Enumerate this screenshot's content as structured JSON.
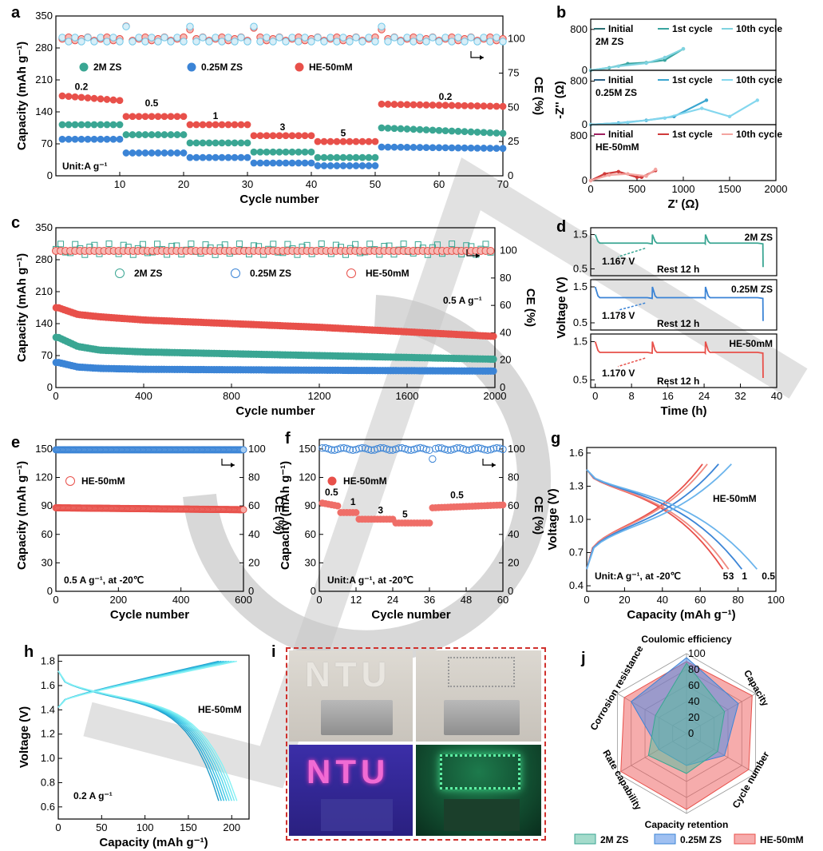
{
  "colors": {
    "zs2": "#3aa693",
    "zs025": "#3b84d6",
    "he": "#e8504a",
    "zs2_light": "#6cc3b2",
    "zs025_light": "#71c7e8",
    "he_light": "#f29b95",
    "watermark": "#c8c8c8",
    "photo_border": "#d0312d"
  },
  "panel_labels": [
    "a",
    "b",
    "c",
    "d",
    "e",
    "f",
    "g",
    "h",
    "i",
    "j"
  ],
  "chart_data": [
    {
      "id": "a",
      "type": "scatter",
      "xlabel": "Cycle number",
      "ylabel": "Capacity (mAh g⁻¹)",
      "y2label": "CE (%)",
      "xlim": [
        0,
        70
      ],
      "ylim": [
        0,
        350
      ],
      "y2lim": [
        0,
        116.7
      ],
      "xticks": [
        "10",
        "20",
        "30",
        "40",
        "50",
        "60",
        "70"
      ],
      "yticks": [
        "0",
        "70",
        "140",
        "210",
        "280",
        "350"
      ],
      "y2ticks": [
        "0",
        "25",
        "50",
        "75",
        "100"
      ],
      "legend": [
        "2M ZS",
        "0.25M ZS",
        "HE-50mM"
      ],
      "unit_note": "Unit:A g⁻¹",
      "rate_labels": [
        {
          "text": "0.2",
          "x": 4,
          "y": 188
        },
        {
          "text": "0.5",
          "x": 15,
          "y": 152
        },
        {
          "text": "1",
          "x": 25,
          "y": 124
        },
        {
          "text": "3",
          "x": 35.5,
          "y": 100
        },
        {
          "text": "5",
          "x": 45,
          "y": 87
        },
        {
          "text": "0.2",
          "x": 61,
          "y": 166
        }
      ],
      "series": [
        {
          "name": "2M ZS",
          "segments": [
            [
              1,
              10,
              112
            ],
            [
              11,
              20,
              90
            ],
            [
              21,
              30,
              72
            ],
            [
              31,
              40,
              52
            ],
            [
              41,
              50,
              40
            ],
            [
              51,
              70,
              105,
              93
            ]
          ]
        },
        {
          "name": "0.25M ZS",
          "segments": [
            [
              1,
              10,
              80
            ],
            [
              11,
              20,
              50
            ],
            [
              21,
              30,
              40
            ],
            [
              31,
              40,
              28
            ],
            [
              41,
              50,
              22
            ],
            [
              51,
              70,
              63,
              60
            ]
          ]
        },
        {
          "name": "HE-50mM",
          "segments": [
            [
              1,
              10,
              175,
              165
            ],
            [
              11,
              20,
              130
            ],
            [
              21,
              30,
              112
            ],
            [
              31,
              40,
              88
            ],
            [
              41,
              50,
              75
            ],
            [
              51,
              70,
              157,
              152
            ]
          ]
        }
      ],
      "ce_level": 100
    },
    {
      "id": "b",
      "type": "line",
      "xlabel": "Z' (Ω)",
      "ylabel": "-Z'' (Ω)",
      "xlim": [
        0,
        2000
      ],
      "ylim": [
        0,
        1000
      ],
      "xticks": [
        "0",
        "500",
        "1000",
        "1500",
        "2000"
      ],
      "yticks": [
        "0",
        "800"
      ],
      "subpanels": [
        {
          "name": "2M ZS",
          "legend": [
            "Initial",
            "1st cycle",
            "10th cycle"
          ],
          "curves": [
            [
              [
                0,
                0
              ],
              [
                200,
                50
              ],
              [
                400,
                130
              ],
              [
                600,
                150
              ],
              [
                800,
                200
              ],
              [
                1000,
                420
              ]
            ],
            [
              [
                0,
                0
              ],
              [
                300,
                80
              ],
              [
                600,
                140
              ],
              [
                800,
                250
              ],
              [
                1000,
                420
              ]
            ]
          ]
        },
        {
          "name": "0.25M ZS",
          "legend": [
            "Initial",
            "1st cycle",
            "10th cycle"
          ],
          "curves": [
            [
              [
                0,
                0
              ],
              [
                300,
                30
              ],
              [
                600,
                80
              ],
              [
                900,
                150
              ],
              [
                1250,
                450
              ]
            ],
            [
              [
                0,
                0
              ],
              [
                400,
                40
              ],
              [
                800,
                120
              ],
              [
                1200,
                300
              ],
              [
                1500,
                150
              ],
              [
                1800,
                450
              ]
            ]
          ]
        },
        {
          "name": "HE-50mM",
          "legend": [
            "Initial",
            "1st cycle",
            "10th cycle"
          ],
          "curves": [
            [
              [
                0,
                0
              ],
              [
                150,
                120
              ],
              [
                300,
                160
              ],
              [
                500,
                60
              ],
              [
                550,
                60
              ],
              [
                700,
                180
              ]
            ],
            [
              [
                0,
                0
              ],
              [
                200,
                100
              ],
              [
                400,
                120
              ],
              [
                600,
                80
              ],
              [
                700,
                200
              ]
            ]
          ]
        }
      ]
    },
    {
      "id": "c",
      "type": "scatter",
      "xlabel": "Cycle number",
      "ylabel": "Capacity (mAh g⁻¹)",
      "y2label": "CE (%)",
      "xlim": [
        0,
        2000
      ],
      "ylim": [
        0,
        350
      ],
      "y2lim": [
        0,
        116.7
      ],
      "xticks": [
        "0",
        "400",
        "800",
        "1200",
        "1600",
        "2000"
      ],
      "yticks": [
        "0",
        "70",
        "140",
        "210",
        "280",
        "350"
      ],
      "y2ticks": [
        "0",
        "20",
        "40",
        "60",
        "80",
        "100"
      ],
      "legend": [
        "2M ZS",
        "0.25M ZS",
        "HE-50mM"
      ],
      "rate_note": "0.5 A g⁻¹",
      "series": [
        {
          "name": "HE-50mM",
          "x": [
            10,
            100,
            200,
            400,
            800,
            1200,
            1600,
            2000
          ],
          "y": [
            175,
            160,
            155,
            148,
            140,
            132,
            122,
            112
          ]
        },
        {
          "name": "2M ZS",
          "x": [
            10,
            100,
            200,
            400,
            800,
            1200,
            1600,
            2000
          ],
          "y": [
            110,
            90,
            82,
            78,
            74,
            70,
            66,
            62
          ]
        },
        {
          "name": "0.25M ZS",
          "x": [
            10,
            100,
            200,
            400,
            800,
            1200,
            1600,
            2000
          ],
          "y": [
            55,
            45,
            42,
            40,
            39,
            38,
            37,
            36
          ]
        }
      ],
      "ce_level": 100
    },
    {
      "id": "d",
      "type": "line",
      "xlabel": "Time (h)",
      "ylabel": "Voltage (V)",
      "xlim": [
        -1,
        40
      ],
      "ylim": [
        0.3,
        1.7
      ],
      "xticks": [
        "0",
        "8",
        "16",
        "24",
        "32",
        "40"
      ],
      "yticks": [
        "0.5",
        "1.5"
      ],
      "subpanels": [
        {
          "name": "2M ZS",
          "note": "1.167 V",
          "rest": "Rest 12 h"
        },
        {
          "name": "0.25M ZS",
          "note": "1.178 V",
          "rest": "Rest 12 h"
        },
        {
          "name": "HE-50mM",
          "note": "1.170 V",
          "rest": "Rest 12 h"
        }
      ]
    },
    {
      "id": "e",
      "type": "scatter",
      "xlabel": "Cycle number",
      "ylabel": "Capacity (mAh g⁻¹)",
      "y2label": "CE (%)",
      "xlim": [
        0,
        600
      ],
      "ylim": [
        0,
        160
      ],
      "y2lim": [
        0,
        106.7
      ],
      "xticks": [
        "0",
        "200",
        "400",
        "600"
      ],
      "yticks": [
        "0",
        "30",
        "60",
        "90",
        "120",
        "150"
      ],
      "y2ticks": [
        "0",
        "20",
        "40",
        "60",
        "80",
        "100"
      ],
      "legend": [
        "HE-50mM"
      ],
      "note": "0.5 A g⁻¹, at -20℃",
      "series": [
        {
          "name": "HE-50mM",
          "x": [
            0,
            600
          ],
          "y": [
            88,
            86
          ]
        }
      ],
      "ce_level": 100
    },
    {
      "id": "f",
      "type": "scatter",
      "xlabel": "Cycle number",
      "ylabel": "Capacity (mAh g⁻¹)",
      "y2label": "CE (%)",
      "xlim": [
        0,
        60
      ],
      "ylim": [
        0,
        160
      ],
      "y2lim": [
        0,
        106.7
      ],
      "xticks": [
        "0",
        "12",
        "24",
        "36",
        "48",
        "60"
      ],
      "yticks": [
        "0",
        "30",
        "60",
        "90",
        "120",
        "150"
      ],
      "y2ticks": [
        "0",
        "20",
        "40",
        "60",
        "80",
        "100"
      ],
      "legend": [
        "HE-50mM"
      ],
      "note": "Unit:A g⁻¹, at -20℃",
      "rate_labels": [
        {
          "text": "0.5",
          "x": 4,
          "y": 101
        },
        {
          "text": "1",
          "x": 11,
          "y": 91
        },
        {
          "text": "3",
          "x": 20,
          "y": 82
        },
        {
          "text": "5",
          "x": 28,
          "y": 78
        },
        {
          "text": "0.5",
          "x": 45,
          "y": 98
        }
      ],
      "segments": [
        [
          1,
          6,
          93,
          90
        ],
        [
          7,
          12,
          83
        ],
        [
          13,
          24,
          76
        ],
        [
          25,
          36,
          72
        ],
        [
          37,
          60,
          88,
          91
        ]
      ],
      "ce_level": 100
    },
    {
      "id": "g",
      "type": "line",
      "xlabel": "Capacity (mAh g⁻¹)",
      "ylabel": "Voltage (V)",
      "xlim": [
        0,
        100
      ],
      "ylim": [
        0.35,
        1.65
      ],
      "xticks": [
        "0",
        "20",
        "40",
        "60",
        "80",
        "100"
      ],
      "yticks": [
        "0.4",
        "0.7",
        "1.0",
        "1.3",
        "1.6"
      ],
      "name": "HE-50mM",
      "note": "Unit:A g⁻¹, at -20℃",
      "rates": [
        {
          "label": "5",
          "cap": 72
        },
        {
          "label": "3",
          "cap": 75
        },
        {
          "label": "1",
          "cap": 82
        },
        {
          "label": "0.5",
          "cap": 90
        }
      ]
    },
    {
      "id": "h",
      "type": "line",
      "xlabel": "Capacity (mAh g⁻¹)",
      "ylabel": "Voltage (V)",
      "xlim": [
        0,
        220
      ],
      "ylim": [
        0.5,
        1.85
      ],
      "xticks": [
        "0",
        "50",
        "100",
        "150",
        "200"
      ],
      "yticks": [
        "0.6",
        "0.8",
        "1.0",
        "1.2",
        "1.4",
        "1.6",
        "1.8"
      ],
      "name": "HE-50mM",
      "note": "0.2 A g⁻¹",
      "caps": [
        185,
        188,
        191,
        194,
        197,
        200,
        203,
        206
      ]
    },
    {
      "id": "j",
      "type": "radar",
      "axes": [
        "Coulomic efficiency",
        "Capacity",
        "Cycle number",
        "Capacity retention",
        "Rate capability",
        "Corrosion resistance"
      ],
      "rticks": [
        "0",
        "20",
        "40",
        "60",
        "80",
        "100"
      ],
      "series": [
        {
          "name": "2M ZS",
          "values": [
            88,
            55,
            45,
            50,
            55,
            45
          ]
        },
        {
          "name": "0.25M ZS",
          "values": [
            95,
            75,
            55,
            40,
            40,
            80
          ]
        },
        {
          "name": "HE-50mM",
          "values": [
            90,
            95,
            90,
            95,
            95,
            90
          ]
        }
      ]
    }
  ],
  "photo_text": {
    "top_left": "NTU",
    "bottom_left": "NTU"
  }
}
